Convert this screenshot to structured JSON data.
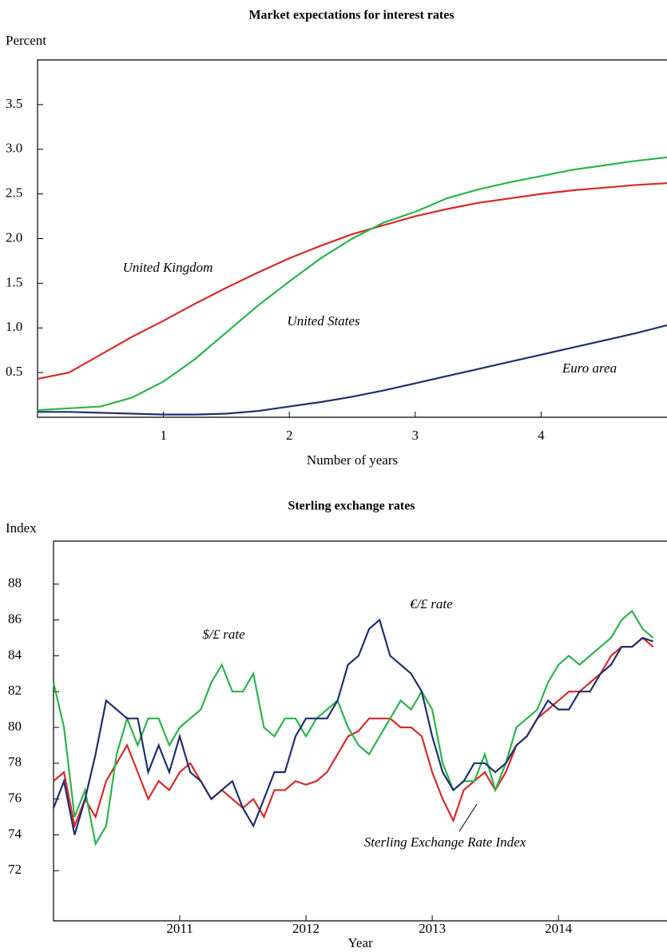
{
  "chart_data": [
    {
      "type": "line",
      "title": "Market expectations for interest rates",
      "y_label": "Percent",
      "x_label": "Number of years",
      "x": [
        0,
        0.25,
        0.5,
        0.75,
        1,
        1.25,
        1.5,
        1.75,
        2,
        2.25,
        2.5,
        2.75,
        3,
        3.25,
        3.5,
        3.75,
        4,
        4.25,
        4.5,
        4.75,
        5
      ],
      "series": [
        {
          "name": "United Kingdom",
          "color": "#d62a2a",
          "values": [
            0.43,
            0.5,
            0.7,
            0.9,
            1.08,
            1.27,
            1.45,
            1.62,
            1.78,
            1.92,
            2.05,
            2.15,
            2.25,
            2.33,
            2.4,
            2.45,
            2.5,
            2.54,
            2.57,
            2.6,
            2.62
          ]
        },
        {
          "name": "United States",
          "color": "#2cb34a",
          "values": [
            0.08,
            0.1,
            0.12,
            0.22,
            0.4,
            0.65,
            0.95,
            1.25,
            1.52,
            1.78,
            2.0,
            2.18,
            2.3,
            2.45,
            2.55,
            2.63,
            2.7,
            2.77,
            2.82,
            2.87,
            2.91
          ]
        },
        {
          "name": "Euro area",
          "color": "#1f2f6e",
          "values": [
            0.06,
            0.06,
            0.05,
            0.04,
            0.03,
            0.03,
            0.04,
            0.07,
            0.12,
            0.17,
            0.23,
            0.3,
            0.38,
            0.46,
            0.54,
            0.62,
            0.7,
            0.78,
            0.86,
            0.94,
            1.03
          ]
        }
      ],
      "xlim": [
        0,
        5
      ],
      "xticks": [
        1,
        2,
        3,
        4
      ],
      "ylim": [
        0,
        4
      ],
      "yticks": [
        0.5,
        {
          "value": 1,
          "label": "1.0"
        },
        1.5,
        {
          "value": 2,
          "label": "2.0"
        },
        2.5,
        {
          "value": 3,
          "label": "3.0"
        },
        3.5
      ]
    },
    {
      "type": "line",
      "title": "Sterling exchange rates",
      "y_label": "Index",
      "x_label": "Year",
      "x": [
        2010,
        2010.083,
        2010.167,
        2010.25,
        2010.333,
        2010.417,
        2010.5,
        2010.583,
        2010.667,
        2010.75,
        2010.833,
        2010.917,
        2011,
        2011.083,
        2011.167,
        2011.25,
        2011.333,
        2011.417,
        2011.5,
        2011.583,
        2011.667,
        2011.75,
        2011.833,
        2011.917,
        2012,
        2012.083,
        2012.167,
        2012.25,
        2012.333,
        2012.417,
        2012.5,
        2012.583,
        2012.667,
        2012.75,
        2012.833,
        2012.917,
        2013,
        2013.083,
        2013.167,
        2013.25,
        2013.333,
        2013.417,
        2013.5,
        2013.583,
        2013.667,
        2013.75,
        2013.833,
        2013.917,
        2014,
        2014.083,
        2014.167,
        2014.25,
        2014.333,
        2014.417,
        2014.5,
        2014.583,
        2014.667,
        2014.75
      ],
      "series": [
        {
          "name": "Sterling Exchange Rate Index",
          "color": "#d62a2a",
          "values": [
            77,
            77.5,
            74.5,
            76,
            75,
            77,
            78,
            79,
            77.5,
            76,
            77,
            76.5,
            77.5,
            78,
            77,
            76,
            76.5,
            76,
            75.5,
            76,
            75,
            76.5,
            76.5,
            77,
            76.8,
            77,
            77.5,
            78.5,
            79.5,
            79.8,
            80.5,
            80.5,
            80.5,
            80,
            80,
            79.5,
            77.5,
            76,
            74.8,
            76.5,
            77,
            77.5,
            76.5,
            77.5,
            79,
            79.5,
            80.5,
            81,
            81.5,
            82,
            82,
            82.5,
            83,
            84,
            84.5,
            84.5,
            85,
            84.5
          ]
        },
        {
          "name": "$/£ rate",
          "color": "#2cb34a",
          "values": [
            82.5,
            80,
            75,
            76.5,
            73.5,
            74.5,
            78.5,
            80.5,
            79,
            80.5,
            80.5,
            79,
            80,
            80.5,
            81,
            82.5,
            83.5,
            82,
            82,
            83,
            80,
            79.5,
            80.5,
            80.5,
            79.5,
            80.5,
            81,
            81.5,
            80,
            79,
            78.5,
            79.5,
            80.5,
            81.5,
            81,
            82,
            81,
            78,
            76.5,
            77,
            77,
            78.5,
            76.5,
            78,
            80,
            80.5,
            81,
            82.5,
            83.5,
            84,
            83.5,
            84,
            84.5,
            85,
            86,
            86.5,
            85.5,
            85
          ]
        },
        {
          "name": "€/£ rate",
          "color": "#1f2f6e",
          "values": [
            75.5,
            77,
            74,
            76,
            78.5,
            81.5,
            81,
            80.5,
            80.5,
            77.5,
            79,
            77.5,
            79.5,
            77.5,
            77,
            76,
            76.5,
            77,
            75.5,
            74.5,
            76,
            77.5,
            77.5,
            79.5,
            80.5,
            80.5,
            80.5,
            81.5,
            83.5,
            84,
            85.5,
            86,
            84,
            83.5,
            83,
            82,
            79.5,
            77.5,
            76.5,
            77,
            78,
            78,
            77.5,
            78,
            79,
            79.5,
            80.5,
            81.5,
            81,
            81,
            82,
            82,
            83,
            83.5,
            84.5,
            84.5,
            85,
            84.8
          ]
        }
      ],
      "xlim": [
        2010,
        2014.86
      ],
      "xticks": [
        2011,
        2012,
        2013,
        2014
      ],
      "ylim": [
        69.2,
        90.4
      ],
      "yticks": [
        72,
        74,
        76,
        78,
        80,
        82,
        84,
        86,
        88
      ]
    }
  ]
}
